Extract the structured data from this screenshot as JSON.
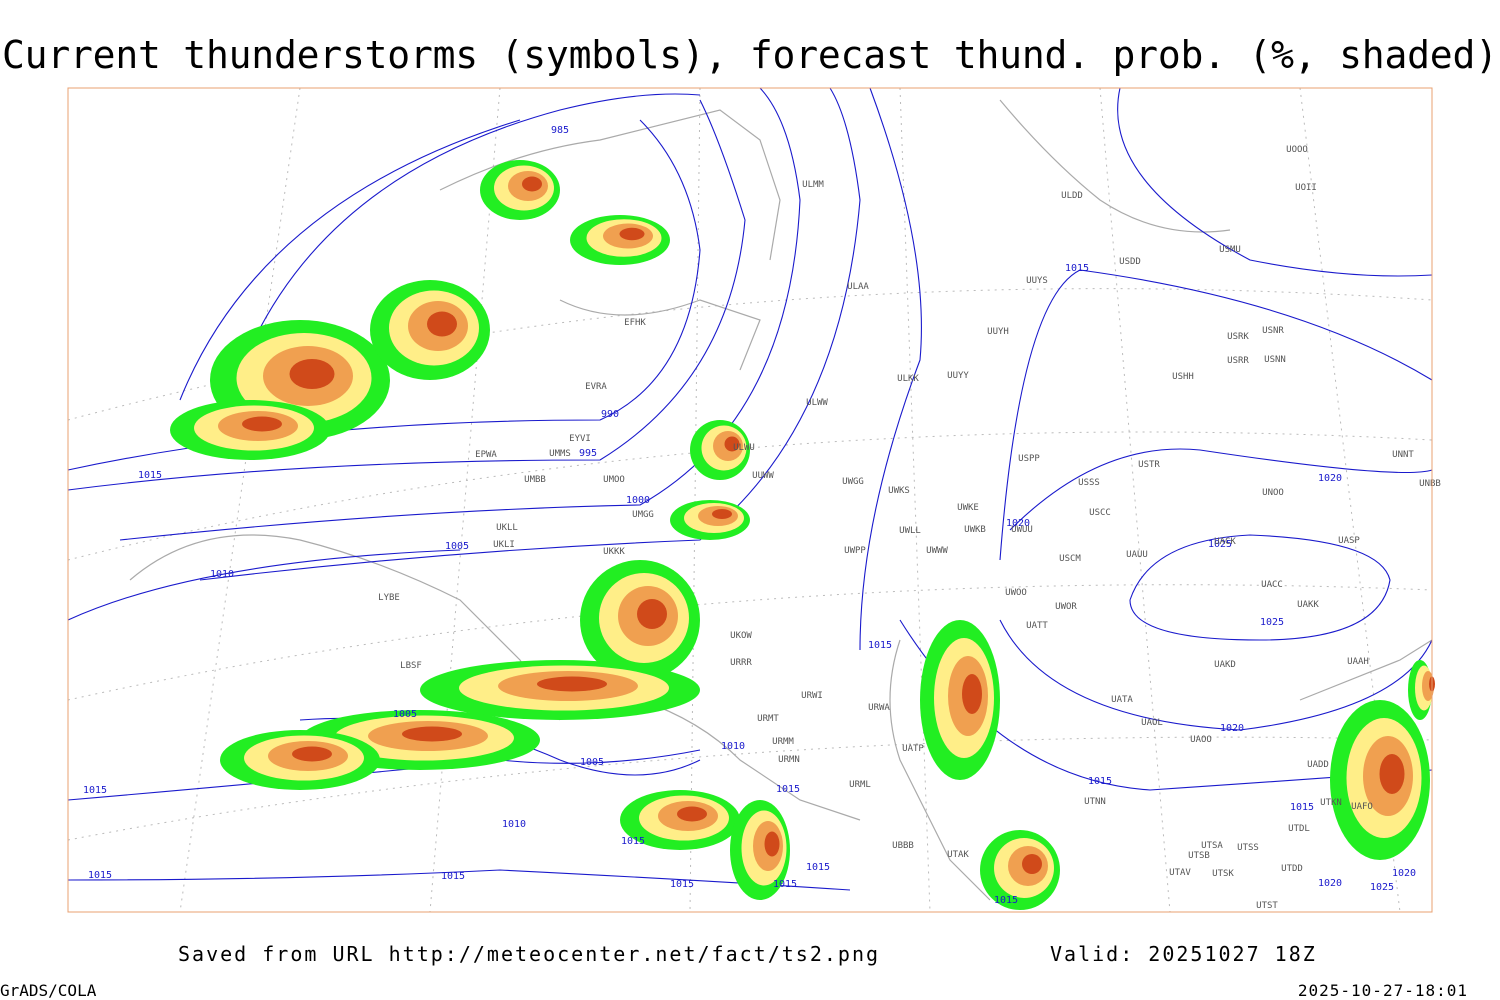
{
  "header": {
    "title": "Current thunderstorms (symbols), forecast thund. prob. (%, shaded)"
  },
  "map": {
    "isobar_labels": [
      "985",
      "990",
      "995",
      "1000",
      "1005",
      "1010",
      "1015",
      "1015",
      "1015",
      "1020",
      "1020",
      "1025",
      "1025",
      "1020",
      "1015",
      "1005",
      "1005",
      "1010",
      "1015",
      "1010",
      "1015",
      "1015",
      "1015",
      "1015",
      "1015",
      "1015",
      "1015",
      "1015",
      "1020",
      "1025",
      "1020",
      "1015"
    ],
    "station_labels": [
      "ULMM",
      "ULDD",
      "USDD",
      "USMU",
      "UOOO",
      "UOII",
      "ULAA",
      "UUYS",
      "UUYH",
      "USRK",
      "USNR",
      "USRR",
      "USNN",
      "USHH",
      "ULKK",
      "UUYY",
      "ULWW",
      "EFHK",
      "EVRA",
      "EYVI",
      "EPWA",
      "UMMS",
      "UMOO",
      "UMBB",
      "UMGG",
      "UKLL",
      "UKLI",
      "UKKK",
      "ULWU",
      "UUWW",
      "UWGG",
      "UWKS",
      "UWKE",
      "UWKB",
      "UWUU",
      "UWLL",
      "UWWW",
      "UWPP",
      "USPP",
      "USTR",
      "USSS",
      "USCC",
      "UNOO",
      "UNNT",
      "UNBB",
      "USCM",
      "UAUU",
      "UACK",
      "UASP",
      "UACC",
      "UAKK",
      "UWOO",
      "UWOR",
      "UATT",
      "UKOW",
      "URRR",
      "UAKD",
      "UAAH",
      "UATA",
      "UAOL",
      "UAOO",
      "UADD",
      "URWI",
      "URWA",
      "URMT",
      "URMM",
      "URMN",
      "URML",
      "UATP",
      "LYBE",
      "LBSF",
      "UTNN",
      "UBBB",
      "UTAK",
      "UTSA",
      "UTSB",
      "UTSS",
      "UTAV",
      "UTSK",
      "UTDD",
      "UTST",
      "UTKN",
      "UAFO",
      "UTDL"
    ]
  },
  "footer": {
    "source": "Saved from URL http://meteocenter.net/fact/ts2.png",
    "valid": "Valid: 20251027 18Z",
    "software": "GrADS/COLA",
    "timestamp": "2025-10-27-18:01"
  }
}
